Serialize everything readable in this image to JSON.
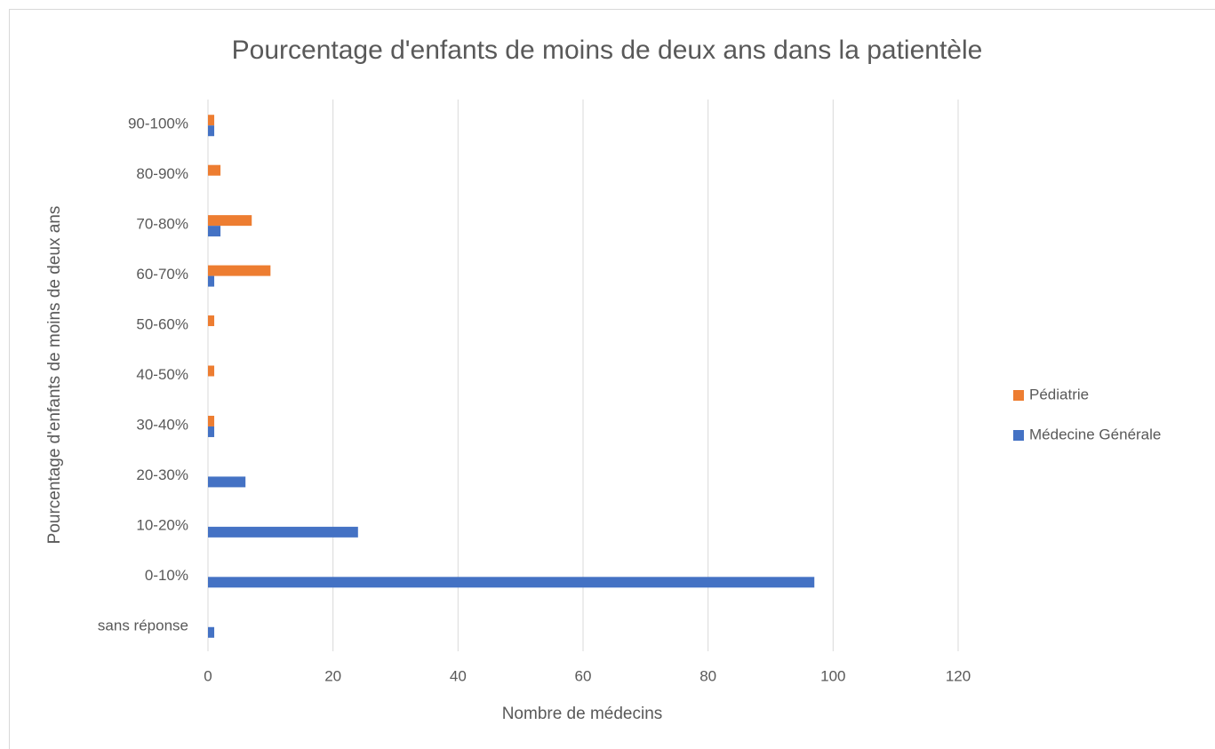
{
  "chart_data": {
    "type": "hbar",
    "title": "Pourcentage d'enfants de moins de deux ans dans la patientèle",
    "x_label": "Nombre de médecins",
    "y_label": "Pourcentage d'enfants de moins de deux ans",
    "categories": [
      "90-100%",
      "80-90%",
      "70-80%",
      "60-70%",
      "50-60%",
      "40-50%",
      "30-40%",
      "20-30%",
      "10-20%",
      "0-10%",
      "sans réponse"
    ],
    "series": [
      {
        "name": "Pédiatrie",
        "color": "#ed7d31",
        "values": [
          1,
          2,
          7,
          10,
          1,
          1,
          1,
          0,
          0,
          0,
          0
        ]
      },
      {
        "name": "Médecine Générale",
        "color": "#4472c4",
        "values": [
          1,
          0,
          2,
          1,
          0,
          0,
          1,
          6,
          24,
          97,
          1
        ]
      }
    ],
    "xlim": [
      0,
      120
    ],
    "xticks": [
      0,
      20,
      40,
      60,
      80,
      100,
      120
    ],
    "grid": true,
    "legend": "right"
  }
}
